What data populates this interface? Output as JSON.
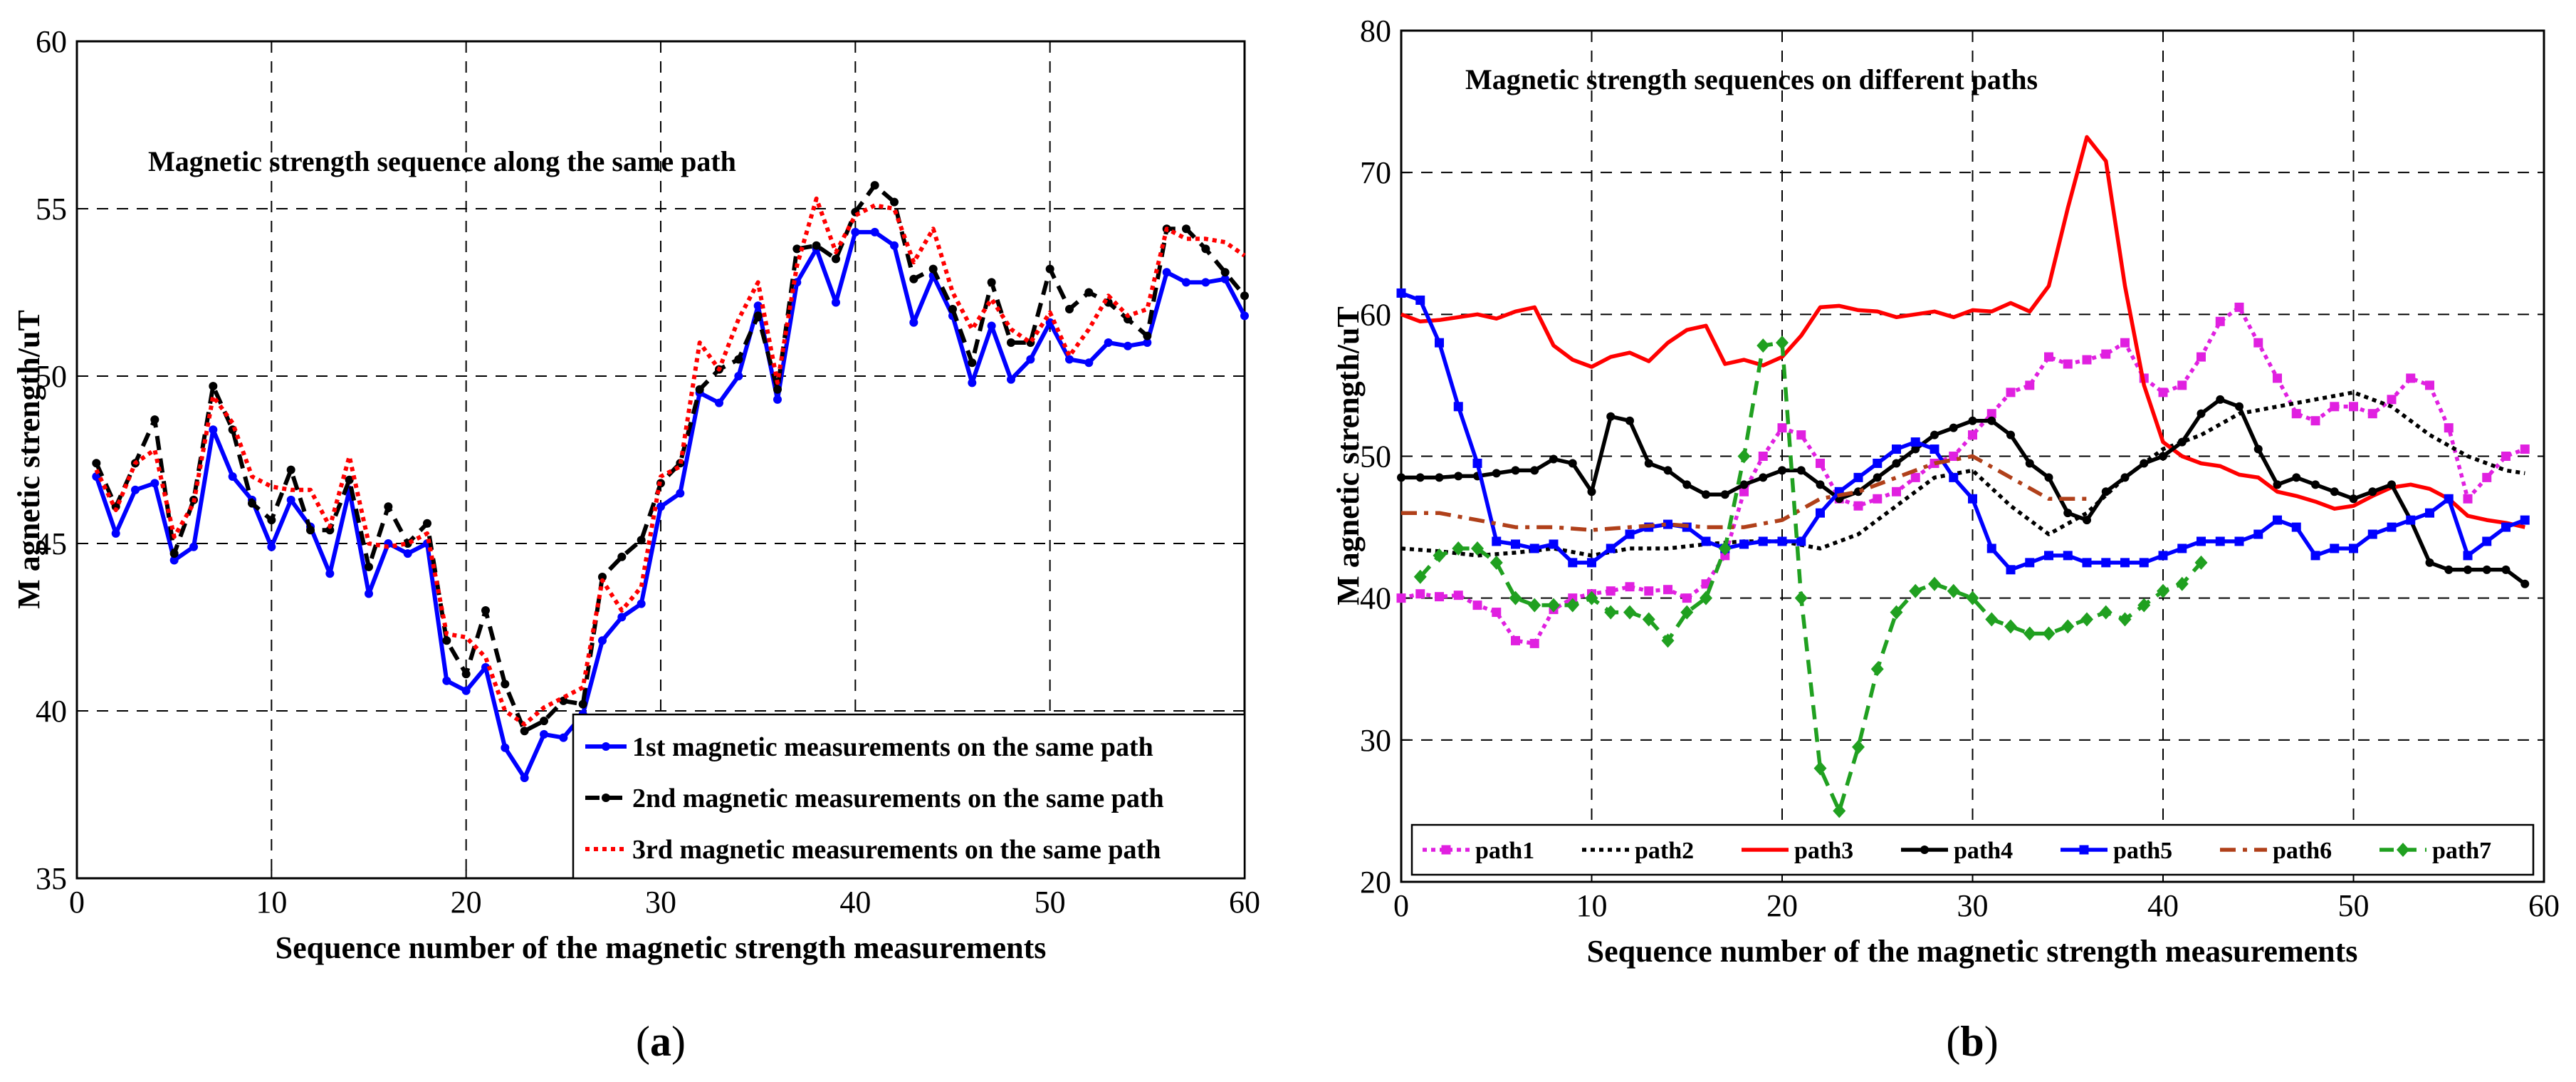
{
  "chart_data": [
    {
      "type": "line",
      "panel_label": "a",
      "title": "Magnetic strength sequence along the same path",
      "xlabel": "Sequence number of the magnetic strength measurements",
      "ylabel": "M agnetic strength/uT",
      "xlim": [
        0,
        60
      ],
      "ylim": [
        35,
        60
      ],
      "xticks": [
        0,
        10,
        20,
        30,
        40,
        50,
        60
      ],
      "yticks": [
        35,
        40,
        45,
        50,
        55,
        60
      ],
      "grid": true,
      "legend_position": "bottom-right",
      "x": [
        1,
        2,
        3,
        4,
        5,
        6,
        7,
        8,
        9,
        10,
        11,
        12,
        13,
        14,
        15,
        16,
        17,
        18,
        19,
        20,
        21,
        22,
        23,
        24,
        25,
        26,
        27,
        28,
        29,
        30,
        31,
        32,
        33,
        34,
        35,
        36,
        37,
        38,
        39,
        40,
        41,
        42,
        43,
        44,
        45,
        46,
        47,
        48,
        49,
        50,
        51,
        52,
        53,
        54,
        55,
        56,
        57,
        58,
        59,
        60
      ],
      "series": [
        {
          "name": "1st magnetic measurements on the same path",
          "color": "#0000ff",
          "style": "solid",
          "marker": "dot",
          "values": [
            47.0,
            45.3,
            46.6,
            46.8,
            44.5,
            44.9,
            48.4,
            47.0,
            46.3,
            44.9,
            46.3,
            45.5,
            44.1,
            46.6,
            43.5,
            45.0,
            44.7,
            45.0,
            40.9,
            40.6,
            41.3,
            38.9,
            38.0,
            39.3,
            39.2,
            39.9,
            42.1,
            42.8,
            43.2,
            46.1,
            46.5,
            49.5,
            49.2,
            50.0,
            52.1,
            49.3,
            52.8,
            53.8,
            52.2,
            54.3,
            54.3,
            53.9,
            51.6,
            53.0,
            51.8,
            49.8,
            51.5,
            49.9,
            50.5,
            51.6,
            50.5,
            50.4,
            51.0,
            50.9,
            51.0,
            53.1,
            52.8,
            52.8,
            52.9,
            51.8
          ]
        },
        {
          "name": "2nd magnetic measurements on the same path",
          "color": "#000000",
          "style": "dashed",
          "marker": "dot",
          "values": [
            47.4,
            46.1,
            47.4,
            48.7,
            44.7,
            46.3,
            49.7,
            48.4,
            46.2,
            45.7,
            47.2,
            45.4,
            45.4,
            46.9,
            44.3,
            46.1,
            45.0,
            45.6,
            42.1,
            41.1,
            43.0,
            40.8,
            39.4,
            39.7,
            40.3,
            40.2,
            44.0,
            44.6,
            45.1,
            46.8,
            47.4,
            49.6,
            50.2,
            50.5,
            51.8,
            49.6,
            53.8,
            53.9,
            53.5,
            54.9,
            55.7,
            55.2,
            52.9,
            53.2,
            52.0,
            50.4,
            52.8,
            51.0,
            51.0,
            53.2,
            52.0,
            52.5,
            52.2,
            51.7,
            51.2,
            54.4,
            54.4,
            53.8,
            53.1,
            52.4
          ]
        },
        {
          "name": "3rd magnetic measurements on the same path",
          "color": "#ff0000",
          "style": "dotted",
          "marker": "none",
          "values": [
            47.2,
            46.0,
            47.4,
            47.8,
            45.2,
            46.2,
            49.4,
            48.6,
            47.0,
            46.7,
            46.6,
            46.6,
            45.5,
            47.6,
            45.0,
            44.9,
            45.0,
            45.3,
            42.3,
            42.2,
            41.6,
            40.0,
            39.6,
            40.1,
            40.4,
            40.7,
            43.9,
            43.0,
            43.7,
            47.0,
            47.3,
            51.0,
            50.2,
            51.7,
            52.8,
            49.8,
            53.3,
            55.3,
            53.7,
            54.8,
            55.1,
            55.0,
            53.4,
            54.4,
            52.5,
            51.4,
            52.3,
            51.4,
            51.0,
            51.9,
            50.6,
            51.4,
            52.4,
            51.8,
            52.0,
            54.4,
            54.1,
            54.1,
            54.0,
            53.6
          ]
        }
      ]
    },
    {
      "type": "line",
      "panel_label": "b",
      "title": "Magnetic strength sequences on different paths",
      "xlabel": "Sequence number of the magnetic strength measurements",
      "ylabel": "M agnetic strength/uT",
      "xlim": [
        0,
        60
      ],
      "ylim": [
        20,
        80
      ],
      "xticks": [
        0,
        10,
        20,
        30,
        40,
        50,
        60
      ],
      "yticks": [
        20,
        30,
        40,
        50,
        60,
        70,
        80
      ],
      "grid": true,
      "legend_position": "bottom",
      "series": [
        {
          "name": "path1",
          "color": "#e020e0",
          "style": "dotted",
          "marker": "square",
          "x": [
            0,
            1,
            2,
            3,
            4,
            5,
            6,
            7,
            8,
            9,
            10,
            11,
            12,
            13,
            14,
            15,
            16,
            17,
            18,
            19,
            20,
            21,
            22,
            23,
            24,
            25,
            26,
            27,
            28,
            29,
            30,
            31,
            32,
            33,
            34,
            35,
            36,
            37,
            38,
            39,
            40,
            41,
            42,
            43,
            44,
            45,
            46,
            47,
            48,
            49,
            50,
            51,
            52,
            53,
            54,
            55,
            56,
            57,
            58,
            59
          ],
          "values": [
            40.0,
            40.3,
            40.1,
            40.2,
            39.5,
            39.0,
            37.0,
            36.8,
            39.2,
            40.0,
            40.3,
            40.5,
            40.8,
            40.5,
            40.6,
            40.0,
            41.0,
            43.0,
            47.5,
            50.0,
            52.0,
            51.5,
            49.5,
            47.0,
            46.5,
            47.0,
            47.5,
            48.5,
            49.5,
            50.0,
            51.5,
            53.0,
            54.5,
            55.0,
            57.0,
            56.5,
            56.8,
            57.2,
            58.0,
            55.5,
            54.5,
            55.0,
            57.0,
            59.5,
            60.5,
            58.0,
            55.5,
            53.0,
            52.5,
            53.5,
            53.5,
            53.0,
            54.0,
            55.5,
            55.0,
            52.0,
            47.0,
            48.5,
            50.0,
            50.5
          ]
        },
        {
          "name": "path2",
          "color": "#000000",
          "style": "dotted",
          "marker": "none",
          "x": [
            0,
            2,
            4,
            6,
            8,
            10,
            12,
            14,
            16,
            18,
            20,
            22,
            24,
            26,
            28,
            30,
            32,
            34,
            36,
            38,
            40,
            42,
            44,
            46,
            48,
            50,
            52,
            54,
            56,
            58,
            59
          ],
          "values": [
            43.5,
            43.3,
            43.0,
            43.2,
            43.5,
            43.0,
            43.5,
            43.5,
            43.8,
            44.0,
            44.0,
            43.5,
            44.5,
            46.5,
            48.5,
            49.0,
            46.5,
            44.5,
            46.0,
            48.5,
            50.5,
            51.5,
            53.0,
            53.5,
            54.0,
            54.5,
            53.5,
            51.5,
            50.0,
            49.0,
            48.8
          ]
        },
        {
          "name": "path3",
          "color": "#ff0000",
          "style": "solid",
          "marker": "none",
          "x": [
            0,
            1,
            2,
            3,
            4,
            5,
            6,
            7,
            8,
            9,
            10,
            11,
            12,
            13,
            14,
            15,
            16,
            17,
            18,
            19,
            20,
            21,
            22,
            23,
            24,
            25,
            26,
            27,
            28,
            29,
            30,
            31,
            32,
            33,
            34,
            35,
            36,
            37,
            38,
            39,
            40,
            41,
            42,
            43,
            44,
            45,
            46,
            47,
            48,
            49,
            50,
            51,
            52,
            53,
            54,
            55,
            56,
            57,
            58,
            59
          ],
          "values": [
            60.0,
            59.5,
            59.6,
            59.8,
            60.0,
            59.7,
            60.2,
            60.5,
            57.8,
            56.8,
            56.3,
            57.0,
            57.3,
            56.7,
            58.0,
            58.9,
            59.2,
            56.5,
            56.8,
            56.4,
            57.0,
            58.5,
            60.5,
            60.6,
            60.3,
            60.2,
            59.8,
            60.0,
            60.2,
            59.8,
            60.3,
            60.2,
            60.8,
            60.2,
            62.0,
            67.5,
            72.5,
            70.8,
            62.0,
            55.0,
            51.0,
            50.0,
            49.5,
            49.3,
            48.7,
            48.5,
            47.5,
            47.2,
            46.8,
            46.3,
            46.5,
            47.2,
            47.8,
            48.0,
            47.7,
            47.0,
            45.8,
            45.5,
            45.3,
            45.0
          ]
        },
        {
          "name": "path4",
          "color": "#000000",
          "style": "solid",
          "marker": "dot",
          "x": [
            0,
            1,
            2,
            3,
            4,
            5,
            6,
            7,
            8,
            9,
            10,
            11,
            12,
            13,
            14,
            15,
            16,
            17,
            18,
            19,
            20,
            21,
            22,
            23,
            24,
            25,
            26,
            27,
            28,
            29,
            30,
            31,
            32,
            33,
            34,
            35,
            36,
            37,
            38,
            39,
            40,
            41,
            42,
            43,
            44,
            45,
            46,
            47,
            48,
            49,
            50,
            51,
            52,
            53,
            54,
            55,
            56,
            57,
            58,
            59
          ],
          "values": [
            48.5,
            48.5,
            48.5,
            48.6,
            48.6,
            48.8,
            49.0,
            49.0,
            49.8,
            49.5,
            47.5,
            52.8,
            52.5,
            49.5,
            49.0,
            48.0,
            47.3,
            47.3,
            48.0,
            48.5,
            49.0,
            49.0,
            48.0,
            47.0,
            47.5,
            48.5,
            49.5,
            50.5,
            51.5,
            52.0,
            52.5,
            52.5,
            51.5,
            49.5,
            48.5,
            46.0,
            45.5,
            47.5,
            48.5,
            49.5,
            50.0,
            51.0,
            53.0,
            54.0,
            53.5,
            50.5,
            48.0,
            48.5,
            48.0,
            47.5,
            47.0,
            47.5,
            48.0,
            45.5,
            42.5,
            42.0,
            42.0,
            42.0,
            42.0,
            41.0
          ]
        },
        {
          "name": "path5",
          "color": "#0000ff",
          "style": "solid",
          "marker": "square",
          "x": [
            0,
            1,
            2,
            3,
            4,
            5,
            6,
            7,
            8,
            9,
            10,
            11,
            12,
            13,
            14,
            15,
            16,
            17,
            18,
            19,
            20,
            21,
            22,
            23,
            24,
            25,
            26,
            27,
            28,
            29,
            30,
            31,
            32,
            33,
            34,
            35,
            36,
            37,
            38,
            39,
            40,
            41,
            42,
            43,
            44,
            45,
            46,
            47,
            48,
            49,
            50,
            51,
            52,
            53,
            54,
            55,
            56,
            57,
            58,
            59
          ],
          "values": [
            61.5,
            61.0,
            58.0,
            53.5,
            49.5,
            44.0,
            43.8,
            43.5,
            43.8,
            42.5,
            42.5,
            43.5,
            44.5,
            45.0,
            45.2,
            45.0,
            44.0,
            43.5,
            43.8,
            44.0,
            44.0,
            44.0,
            46.0,
            47.5,
            48.5,
            49.5,
            50.5,
            51.0,
            50.5,
            48.5,
            47.0,
            43.5,
            42.0,
            42.5,
            43.0,
            43.0,
            42.5,
            42.5,
            42.5,
            42.5,
            43.0,
            43.5,
            44.0,
            44.0,
            44.0,
            44.5,
            45.5,
            45.0,
            43.0,
            43.5,
            43.5,
            44.5,
            45.0,
            45.5,
            46.0,
            47.0,
            43.0,
            44.0,
            45.0,
            45.5
          ]
        },
        {
          "name": "path6",
          "color": "#b0401a",
          "style": "dashdot",
          "marker": "none",
          "x": [
            0,
            2,
            4,
            6,
            8,
            10,
            12,
            14,
            16,
            18,
            20,
            22,
            24,
            26,
            28,
            30,
            32,
            34,
            36
          ],
          "values": [
            46.0,
            46.0,
            45.5,
            45.0,
            45.0,
            44.8,
            45.0,
            45.2,
            45.0,
            45.0,
            45.5,
            47.0,
            47.5,
            48.5,
            49.5,
            50.0,
            48.5,
            47.0,
            47.0
          ]
        },
        {
          "name": "path7",
          "color": "#20a020",
          "style": "dashed",
          "marker": "diamond",
          "x": [
            1,
            2,
            3,
            4,
            5,
            6,
            7,
            8,
            9,
            10,
            11,
            12,
            13,
            14,
            15,
            16,
            17,
            18,
            19,
            20,
            21,
            22,
            23,
            24,
            25,
            26,
            27,
            28,
            29,
            30,
            31,
            32,
            33,
            34,
            35,
            36,
            37,
            38,
            39,
            40,
            41,
            42
          ],
          "values": [
            41.5,
            43.0,
            43.5,
            43.5,
            42.5,
            40.0,
            39.5,
            39.5,
            39.5,
            40.0,
            39.0,
            39.0,
            38.5,
            37.0,
            39.0,
            40.0,
            43.5,
            50.0,
            57.8,
            58.0,
            40.0,
            28.0,
            25.0,
            29.5,
            35.0,
            39.0,
            40.5,
            41.0,
            40.5,
            40.0,
            38.5,
            38.0,
            37.5,
            37.5,
            38.0,
            38.5,
            39.0,
            38.5,
            39.5,
            40.5,
            41.0,
            42.5
          ]
        }
      ]
    }
  ],
  "captions": {
    "a": "(a)",
    "b": "(b)"
  }
}
